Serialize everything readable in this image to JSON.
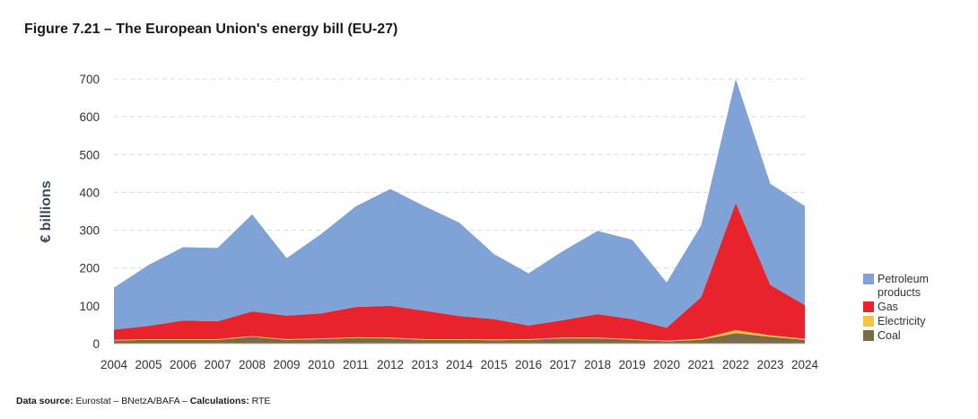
{
  "title": "Figure 7.21 – The European Union's energy bill (EU-27)",
  "source": {
    "label1": "Data source:",
    "text1": " Eurostat – BNetzA/BAFA – ",
    "label2": "Calculations:",
    "text2": " RTE"
  },
  "chart_data": {
    "type": "area",
    "stacked": true,
    "title": "Figure 7.21 – The European Union's energy bill (EU-27)",
    "xlabel": "",
    "ylabel": "€ billions",
    "ylim": [
      0,
      700
    ],
    "yticks": [
      0,
      100,
      200,
      300,
      400,
      500,
      600,
      700
    ],
    "grid": true,
    "legend_position": "right",
    "x": [
      "2004",
      "2005",
      "2006",
      "2007",
      "2008",
      "2009",
      "2010",
      "2011",
      "2012",
      "2013",
      "2014",
      "2015",
      "2016",
      "2017",
      "2018",
      "2019",
      "2020",
      "2021",
      "2022",
      "2023",
      "2024"
    ],
    "series": [
      {
        "name": "Coal",
        "color": "#7a6a45",
        "values": [
          8,
          10,
          10,
          10,
          18,
          10,
          12,
          15,
          14,
          10,
          10,
          9,
          10,
          14,
          14,
          10,
          6,
          10,
          28,
          18,
          10
        ]
      },
      {
        "name": "Electricity",
        "color": "#f5c242",
        "values": [
          2,
          2,
          2,
          2,
          2,
          2,
          2,
          2,
          2,
          2,
          2,
          2,
          2,
          2,
          2,
          2,
          2,
          3,
          8,
          4,
          3
        ]
      },
      {
        "name": "Gas",
        "color": "#e8232b",
        "values": [
          27,
          35,
          49,
          47,
          65,
          62,
          66,
          80,
          84,
          75,
          61,
          54,
          36,
          46,
          62,
          53,
          34,
          110,
          336,
          133,
          89
        ]
      },
      {
        "name": "Petroleum\nproducts",
        "color": "#7fa3d6",
        "values": [
          111,
          161,
          194,
          194,
          257,
          152,
          210,
          266,
          309,
          276,
          247,
          172,
          138,
          183,
          220,
          210,
          120,
          190,
          328,
          268,
          262
        ]
      }
    ]
  }
}
